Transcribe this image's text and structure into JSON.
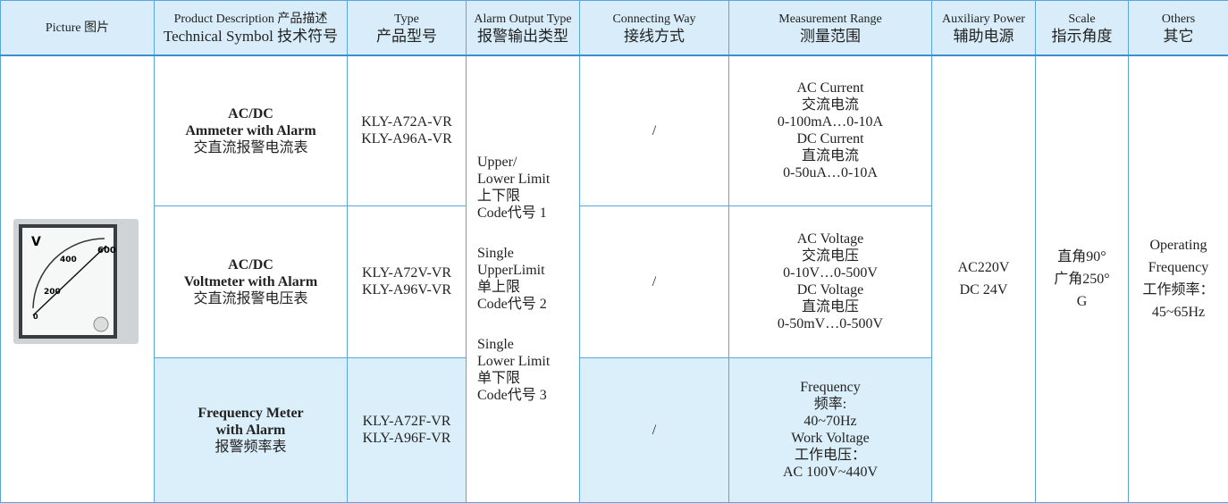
{
  "header": [
    {
      "lines": [
        "Picture 图片"
      ]
    },
    {
      "lines": [
        "Product Description 产品描述",
        "Technical Symbol 技术符号"
      ]
    },
    {
      "lines": [
        "Type",
        "产品型号"
      ]
    },
    {
      "lines": [
        "Alarm Output Type",
        "报警输出类型"
      ]
    },
    {
      "lines": [
        "Connecting Way",
        "接线方式"
      ]
    },
    {
      "lines": [
        "Measurement Range",
        "测量范围"
      ]
    },
    {
      "lines": [
        "Auxiliary Power",
        "辅助电源"
      ]
    },
    {
      "lines": [
        "Scale",
        "指示角度"
      ]
    },
    {
      "lines": [
        "Others",
        "其它"
      ]
    }
  ],
  "picture": {
    "scale_labels": [
      "V",
      "400",
      "600",
      "200",
      "0"
    ]
  },
  "rows": [
    {
      "title": [
        "AC/DC",
        "Ammeter with Alarm"
      ],
      "zh": "交直流报警电流表",
      "types": [
        "KLY-A72A-VR",
        "KLY-A96A-VR"
      ],
      "connecting": "/",
      "measurement": [
        "AC Current",
        "交流电流",
        "0-100mA…0-10A",
        "DC Current",
        "直流电流",
        "0-50uA…0-10A"
      ]
    },
    {
      "title": [
        "AC/DC",
        "Voltmeter with Alarm"
      ],
      "zh": "交直流报警电压表",
      "types": [
        "KLY-A72V-VR",
        "KLY-A96V-VR"
      ],
      "connecting": "/",
      "measurement": [
        "AC Voltage",
        "交流电压",
        "0-10V…0-500V",
        "DC Voltage",
        "直流电压",
        "0-50mV…0-500V"
      ]
    },
    {
      "title": [
        "Frequency Meter",
        "with Alarm"
      ],
      "zh": "报警频率表",
      "types": [
        "KLY-A72F-VR",
        "KLY-A96F-VR"
      ],
      "connecting": "/",
      "measurement": [
        "Frequency",
        "频率:",
        "40~70Hz",
        "Work Voltage",
        "工作电压：",
        "AC 100V~440V"
      ]
    }
  ],
  "alarm": [
    [
      "Upper/",
      "Lower Limit",
      "上下限",
      "Code代号 1"
    ],
    [
      "Single",
      "UpperLimit",
      "单上限",
      "Code代号 2"
    ],
    [
      "Single",
      "Lower Limit",
      "单下限",
      "Code代号 3"
    ]
  ],
  "aux": [
    "AC220V",
    "DC 24V"
  ],
  "scale": [
    "直角90°",
    "广角250°",
    "G"
  ],
  "others": [
    "Operating",
    "Frequency",
    "工作频率：",
    "45~65Hz"
  ]
}
